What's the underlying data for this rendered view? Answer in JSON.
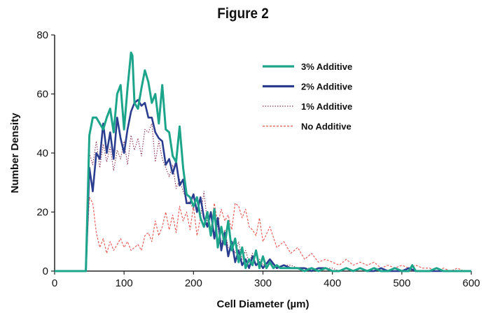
{
  "chart_data": {
    "type": "line",
    "title": "Figure 2",
    "xlabel": "Cell Diameter (µm)",
    "ylabel": "Number Density",
    "xlim": [
      0,
      600
    ],
    "ylim": [
      0,
      80
    ],
    "xticks": [
      "0",
      "100",
      "200",
      "300",
      "400",
      "500",
      "600"
    ],
    "yticks": [
      "0",
      "20",
      "40",
      "60",
      "80"
    ],
    "grid": false,
    "legend_position": "top-right",
    "series": [
      {
        "name": "3% Additive",
        "color": "#1ca58a",
        "style": "solid",
        "x": [
          0,
          45,
          50,
          55,
          60,
          65,
          70,
          75,
          80,
          85,
          90,
          95,
          100,
          105,
          110,
          112,
          115,
          120,
          125,
          130,
          135,
          140,
          145,
          150,
          155,
          160,
          165,
          170,
          175,
          180,
          185,
          190,
          195,
          200,
          205,
          210,
          215,
          220,
          225,
          230,
          235,
          240,
          245,
          250,
          255,
          260,
          265,
          270,
          275,
          280,
          285,
          290,
          295,
          300,
          305,
          310,
          315,
          320,
          325,
          330,
          340,
          350,
          360,
          370,
          380,
          390,
          400,
          410,
          420,
          430,
          440,
          450,
          460,
          470,
          480,
          490,
          500,
          510,
          515,
          520,
          530,
          540,
          550,
          560,
          570,
          580,
          590,
          600
        ],
        "y": [
          0,
          0,
          46,
          52,
          52,
          50,
          48,
          52,
          55,
          47,
          60,
          63,
          48,
          62,
          74,
          73,
          57,
          55,
          62,
          68,
          64,
          57,
          60,
          50,
          63,
          48,
          47,
          39,
          37,
          49,
          35,
          26,
          25,
          22,
          25,
          18,
          15,
          20,
          12,
          21,
          8,
          15,
          9,
          17,
          7,
          11,
          3,
          8,
          1,
          4,
          2,
          7,
          1,
          5,
          1,
          3,
          1,
          2,
          1,
          1,
          1,
          1,
          0,
          1,
          0,
          1,
          0,
          0,
          1,
          0,
          1,
          0,
          1,
          0,
          0,
          1,
          0,
          0,
          2,
          0,
          0,
          0,
          1,
          0,
          0,
          0,
          0,
          0
        ]
      },
      {
        "name": "2% Additive",
        "color": "#2a3d8f",
        "style": "solid",
        "x": [
          0,
          45,
          50,
          55,
          60,
          65,
          70,
          75,
          80,
          85,
          90,
          95,
          100,
          105,
          110,
          115,
          120,
          125,
          130,
          135,
          140,
          145,
          150,
          155,
          160,
          165,
          170,
          175,
          180,
          185,
          190,
          195,
          200,
          205,
          210,
          215,
          220,
          225,
          230,
          235,
          240,
          245,
          250,
          255,
          260,
          265,
          270,
          275,
          280,
          285,
          290,
          295,
          300,
          310,
          320,
          330,
          340,
          350,
          360,
          370,
          380,
          390,
          400,
          410,
          420,
          430,
          440,
          450,
          460,
          470,
          480,
          490,
          500,
          510,
          520,
          530,
          540,
          550,
          560,
          570,
          580,
          590,
          600
        ],
        "y": [
          0,
          0,
          35,
          27,
          40,
          38,
          50,
          40,
          47,
          38,
          52,
          45,
          40,
          48,
          54,
          57,
          58,
          56,
          57,
          52,
          52,
          47,
          45,
          44,
          36,
          38,
          33,
          37,
          29,
          31,
          23,
          23,
          26,
          20,
          25,
          18,
          15,
          20,
          11,
          18,
          7,
          13,
          5,
          10,
          3,
          7,
          2,
          4,
          1,
          5,
          2,
          3,
          1,
          4,
          1,
          2,
          1,
          1,
          1,
          0,
          1,
          1,
          0,
          0,
          1,
          0,
          1,
          0,
          0,
          1,
          0,
          0,
          0,
          1,
          0,
          0,
          0,
          0,
          0,
          0,
          0,
          0,
          0
        ]
      },
      {
        "name": "1% Additive",
        "color": "#8b3050",
        "style": "dotted",
        "x": [
          0,
          45,
          50,
          55,
          60,
          65,
          70,
          75,
          80,
          85,
          90,
          95,
          100,
          105,
          110,
          115,
          120,
          125,
          130,
          135,
          140,
          145,
          150,
          155,
          160,
          165,
          170,
          175,
          180,
          185,
          190,
          195,
          200,
          205,
          210,
          215,
          220,
          225,
          230,
          235,
          240,
          245,
          250,
          255,
          260,
          265,
          270,
          275,
          280,
          285,
          290,
          295,
          300,
          310,
          320,
          330,
          340,
          350,
          360,
          370,
          380,
          390,
          400,
          410,
          420,
          430,
          440,
          450,
          460,
          470,
          480,
          490,
          500,
          510,
          520,
          530,
          540,
          550,
          560,
          570,
          580,
          590,
          600
        ],
        "y": [
          0,
          0,
          40,
          36,
          44,
          35,
          43,
          37,
          42,
          34,
          41,
          38,
          44,
          36,
          46,
          41,
          45,
          39,
          48,
          47,
          50,
          37,
          44,
          38,
          35,
          32,
          36,
          28,
          31,
          27,
          24,
          23,
          21,
          25,
          18,
          27,
          16,
          20,
          12,
          15,
          9,
          14,
          8,
          9,
          6,
          10,
          4,
          7,
          3,
          6,
          2,
          4,
          2,
          3,
          1,
          2,
          2,
          1,
          1,
          1,
          0,
          1,
          1,
          0,
          1,
          0,
          1,
          0,
          0,
          1,
          0,
          1,
          0,
          0,
          0,
          0,
          0,
          0,
          0,
          0,
          0,
          0,
          0
        ]
      },
      {
        "name": "No Additive",
        "color": "#e8554e",
        "style": "dashed",
        "x": [
          0,
          45,
          50,
          55,
          60,
          65,
          70,
          75,
          80,
          85,
          90,
          95,
          100,
          105,
          110,
          115,
          120,
          125,
          130,
          135,
          140,
          145,
          150,
          155,
          160,
          165,
          170,
          175,
          180,
          185,
          190,
          195,
          200,
          205,
          210,
          215,
          220,
          225,
          230,
          235,
          240,
          245,
          250,
          255,
          260,
          265,
          270,
          275,
          280,
          285,
          290,
          295,
          300,
          310,
          320,
          330,
          340,
          350,
          360,
          370,
          380,
          390,
          400,
          410,
          420,
          430,
          440,
          450,
          460,
          470,
          480,
          490,
          500,
          510,
          520,
          530,
          540,
          550,
          560,
          570,
          580,
          590,
          600
        ],
        "y": [
          0,
          0,
          25,
          23,
          13,
          8,
          11,
          6,
          10,
          7,
          9,
          11,
          8,
          10,
          7,
          8,
          9,
          7,
          12,
          13,
          10,
          17,
          12,
          15,
          20,
          14,
          19,
          13,
          22,
          17,
          20,
          14,
          22,
          12,
          18,
          15,
          20,
          14,
          23,
          16,
          21,
          17,
          19,
          14,
          23,
          22,
          18,
          21,
          15,
          14,
          12,
          18,
          10,
          15,
          8,
          10,
          6,
          8,
          4,
          6,
          3,
          4,
          3,
          2,
          4,
          2,
          3,
          2,
          3,
          1,
          2,
          1,
          2,
          1,
          2,
          1,
          1,
          0,
          1,
          0,
          1,
          0,
          0
        ]
      }
    ]
  }
}
